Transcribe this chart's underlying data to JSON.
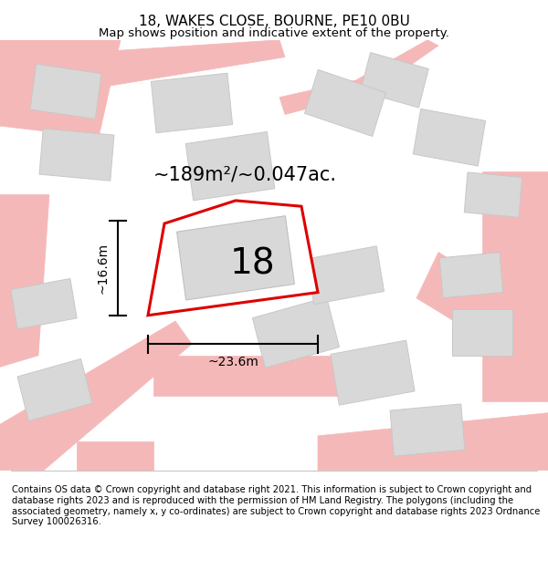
{
  "title": "18, WAKES CLOSE, BOURNE, PE10 0BU",
  "subtitle": "Map shows position and indicative extent of the property.",
  "footer": "Contains OS data © Crown copyright and database right 2021. This information is subject to Crown copyright and database rights 2023 and is reproduced with the permission of HM Land Registry. The polygons (including the associated geometry, namely x, y co-ordinates) are subject to Crown copyright and database rights 2023 Ordnance Survey 100026316.",
  "area_label": "~189m²/~0.047ac.",
  "width_label": "~23.6m",
  "height_label": "~16.6m",
  "plot_number": "18",
  "bg_color": "#ffffff",
  "map_bg": "#f8f8f8",
  "plot_fill": "#ffffff",
  "plot_edge_color": "#dd0000",
  "road_color": "#f5b8b8",
  "road_edge_color": "#f5b8b8",
  "building_color": "#d8d8d8",
  "building_edge": "#c8c8c8",
  "title_fontsize": 11,
  "subtitle_fontsize": 9.5,
  "footer_fontsize": 7.2,
  "area_fontsize": 15,
  "number_fontsize": 28,
  "dim_fontsize": 10
}
